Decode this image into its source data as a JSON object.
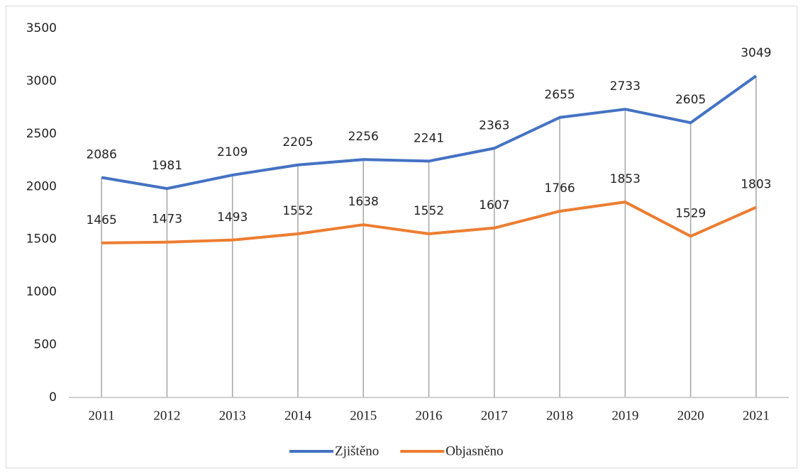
{
  "chart_data": {
    "type": "line",
    "categories": [
      "2011",
      "2012",
      "2013",
      "2014",
      "2015",
      "2016",
      "2017",
      "2018",
      "2019",
      "2020",
      "2021"
    ],
    "series": [
      {
        "name": "Zjištěno",
        "color": "#4472c4",
        "values": [
          2086,
          1981,
          2109,
          2205,
          2256,
          2241,
          2363,
          2655,
          2733,
          2605,
          3049
        ]
      },
      {
        "name": "Objasněno",
        "color": "#ed7d31",
        "values": [
          1465,
          1473,
          1493,
          1552,
          1638,
          1552,
          1607,
          1766,
          1853,
          1529,
          1803
        ]
      }
    ],
    "ylim": [
      0,
      3500
    ],
    "yticks": [
      0,
      500,
      1000,
      1500,
      2000,
      2500,
      3000,
      3500
    ],
    "grid": false,
    "drop_lines": true,
    "legend": "bottom"
  }
}
